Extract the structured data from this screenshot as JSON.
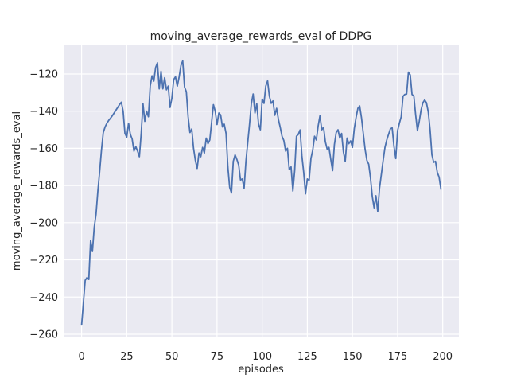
{
  "window": {
    "background_color": "#ffffff"
  },
  "chart_data": {
    "type": "line",
    "title": "moving_average_rewards_eval of DDPG",
    "xlabel": "episodes",
    "ylabel": "moving_average_rewards_eval",
    "xlim": [
      -9.95,
      208.95
    ],
    "ylim": [
      -261.3,
      -104.6
    ],
    "grid": true,
    "legend": false,
    "x_tick_values": [
      0,
      25,
      50,
      75,
      100,
      125,
      150,
      175,
      200
    ],
    "x_tick_labels": [
      "0",
      "25",
      "50",
      "75",
      "100",
      "125",
      "150",
      "175",
      "200"
    ],
    "y_tick_values": [
      -260,
      -240,
      -220,
      -200,
      -180,
      -160,
      -140,
      -120
    ],
    "y_tick_labels": [
      "−260",
      "−240",
      "−220",
      "−200",
      "−180",
      "−160",
      "−140",
      "−120"
    ],
    "colors": {
      "line": "#4c72b0",
      "plot_background": "#eaeaf2",
      "grid": "#ffffff",
      "text": "#262626",
      "figure_background": "#ffffff"
    },
    "series": [
      {
        "name": "moving_average_rewards_eval",
        "x_start": 0,
        "x_step": 1,
        "values": [
          -255.0,
          -243.0,
          -231.0,
          -229.5,
          -230.5,
          -209.5,
          -215.5,
          -202.5,
          -195.5,
          -183.0,
          -172.5,
          -161.0,
          -151.5,
          -148.5,
          -146.5,
          -145.0,
          -143.8,
          -142.5,
          -141.0,
          -139.5,
          -138.0,
          -136.5,
          -135.2,
          -140.0,
          -152.0,
          -154.0,
          -146.5,
          -152.5,
          -155.0,
          -161.5,
          -159.0,
          -161.5,
          -164.5,
          -152.0,
          -136.0,
          -145.5,
          -140.0,
          -143.0,
          -126.5,
          -121.0,
          -123.8,
          -116.5,
          -114.0,
          -128.0,
          -118.5,
          -128.0,
          -122.0,
          -128.5,
          -126.5,
          -138.0,
          -133.0,
          -123.0,
          -121.5,
          -126.5,
          -121.7,
          -115.5,
          -113.0,
          -127.0,
          -129.5,
          -143.0,
          -151.5,
          -149.6,
          -160.0,
          -166.5,
          -170.8,
          -162.5,
          -164.5,
          -159.5,
          -162.5,
          -154.5,
          -157.5,
          -155.5,
          -146.0,
          -136.5,
          -140.0,
          -147.2,
          -141.0,
          -142.0,
          -148.5,
          -147.0,
          -152.0,
          -170.0,
          -181.0,
          -184.0,
          -167.0,
          -163.5,
          -166.0,
          -169.0,
          -177.0,
          -176.5,
          -181.5,
          -167.0,
          -157.0,
          -147.0,
          -136.0,
          -130.8,
          -141.0,
          -136.0,
          -147.0,
          -150.0,
          -133.5,
          -135.8,
          -126.5,
          -123.7,
          -132.0,
          -135.8,
          -134.5,
          -142.2,
          -138.5,
          -144.5,
          -148.7,
          -153.5,
          -155.8,
          -161.5,
          -160.0,
          -171.5,
          -170.0,
          -183.0,
          -172.0,
          -153.5,
          -152.5,
          -150.1,
          -164.0,
          -173.0,
          -184.5,
          -176.5,
          -177.2,
          -165.5,
          -161.0,
          -153.5,
          -155.5,
          -148.0,
          -142.5,
          -150.0,
          -148.7,
          -156.5,
          -160.5,
          -159.5,
          -166.0,
          -172.0,
          -158.0,
          -151.5,
          -150.0,
          -154.5,
          -152.0,
          -162.0,
          -167.0,
          -154.5,
          -157.5,
          -156.0,
          -159.5,
          -149.5,
          -143.5,
          -138.5,
          -137.2,
          -143.5,
          -152.0,
          -160.5,
          -166.5,
          -168.5,
          -176.0,
          -186.0,
          -192.0,
          -185.5,
          -194.0,
          -181.5,
          -174.0,
          -166.5,
          -159.5,
          -155.5,
          -152.5,
          -149.5,
          -149.0,
          -159.0,
          -165.5,
          -150.5,
          -146.5,
          -143.0,
          -132.0,
          -131.0,
          -130.8,
          -119.0,
          -120.5,
          -131.0,
          -131.8,
          -142.0,
          -150.5,
          -145.5,
          -139.4,
          -135.5,
          -134.0,
          -135.5,
          -140.5,
          -150.0,
          -163.5,
          -167.5,
          -167.0,
          -173.0,
          -175.5,
          -182.0
        ]
      }
    ]
  }
}
